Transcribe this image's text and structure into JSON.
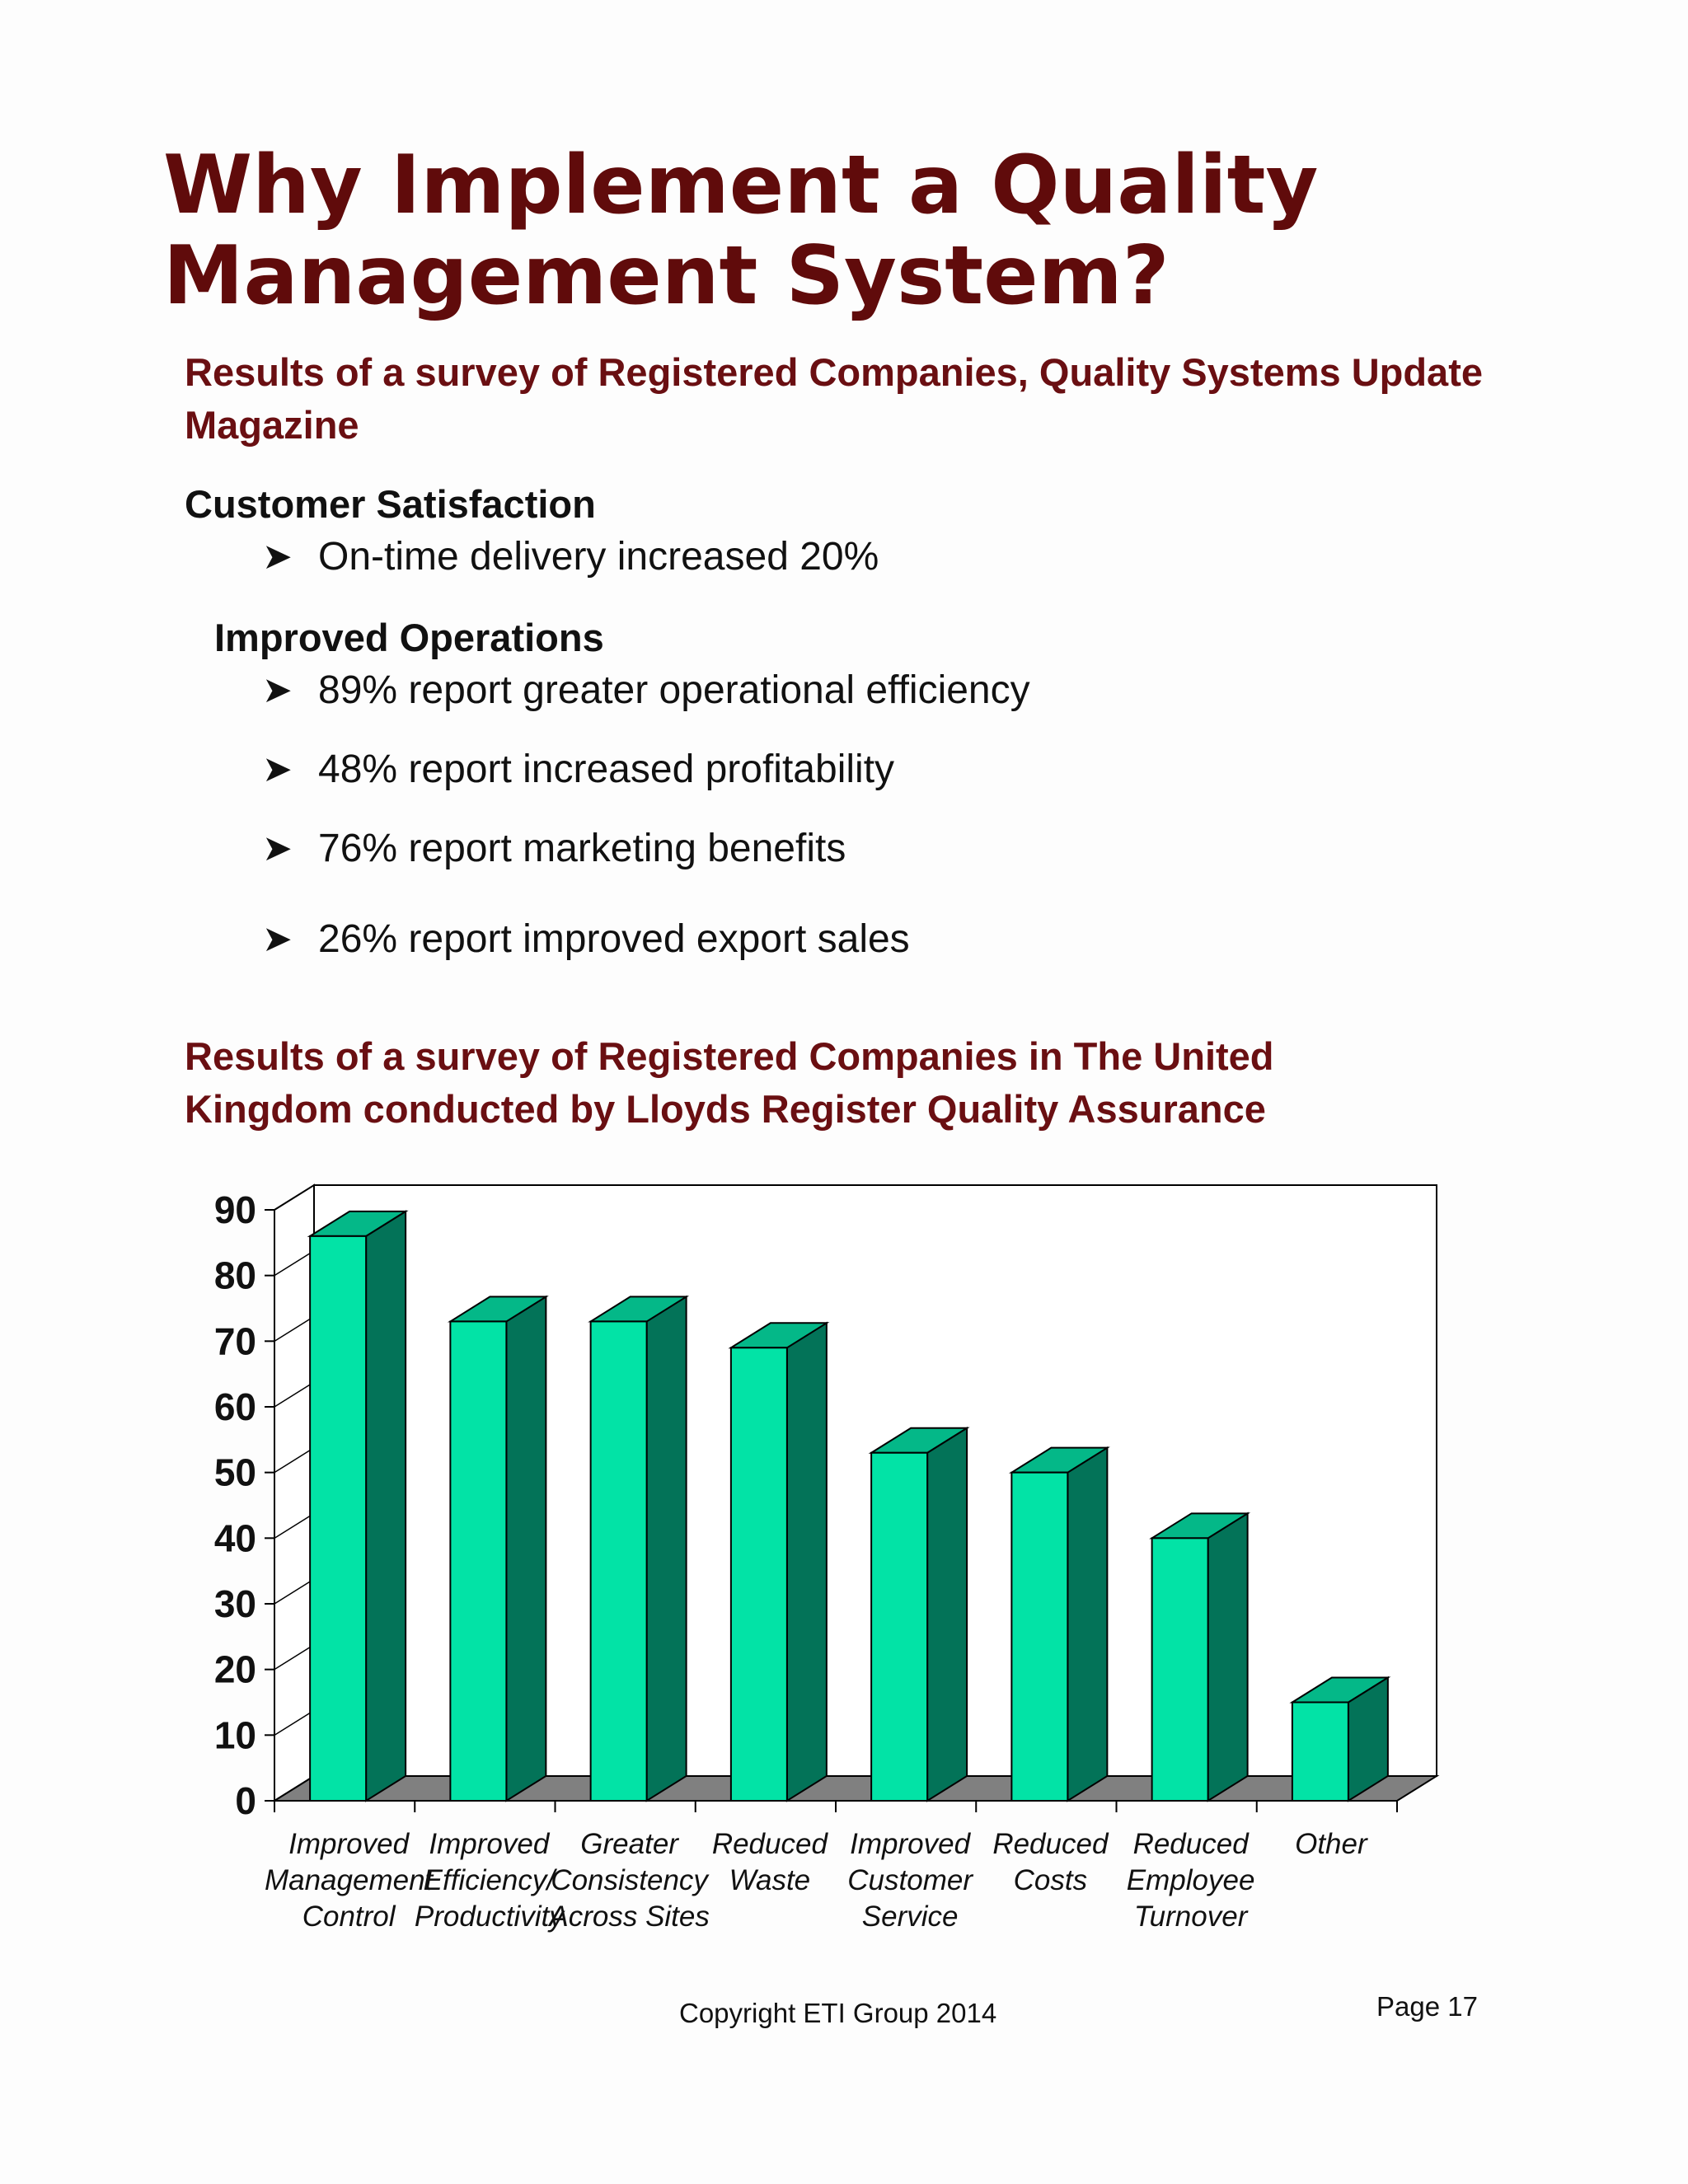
{
  "title": "Why Implement a Quality Management System?",
  "survey1_heading": "Results of a survey of Registered Companies, Quality Systems Update Magazine",
  "customer_section": {
    "heading": "Customer Satisfaction",
    "items": [
      "On-time delivery increased 20%"
    ]
  },
  "operations_section": {
    "heading": "Improved Operations",
    "items": [
      "89% report greater operational efficiency",
      "48% report increased profitability",
      "76% report marketing benefits",
      "26% report improved export sales"
    ]
  },
  "survey2_heading": "Results of a survey of Registered Companies in The United Kingdom conducted by Lloyds Register Quality Assurance",
  "chart_data": {
    "type": "bar",
    "style": "3d",
    "categories": [
      [
        "Improved",
        "Management",
        "Control"
      ],
      [
        "Improved",
        "Efficiency/",
        "Productivity"
      ],
      [
        "Greater",
        "Consistency",
        "Across Sites"
      ],
      [
        "Reduced",
        "Waste"
      ],
      [
        "Improved",
        "Customer",
        "Service"
      ],
      [
        "Reduced",
        "Costs"
      ],
      [
        "Reduced",
        "Employee",
        "Turnover"
      ],
      [
        "Other"
      ]
    ],
    "values": [
      86,
      73,
      73,
      69,
      53,
      50,
      40,
      15
    ],
    "ylim": [
      0,
      90
    ],
    "yticks": [
      0,
      10,
      20,
      30,
      40,
      50,
      60,
      70,
      80,
      90
    ],
    "grid": false,
    "colors": {
      "front": "#02e3a6",
      "side": "#037358",
      "top": "#04b888",
      "floor": "#808080"
    }
  },
  "footer": {
    "copyright": "Copyright ETI Group 2014",
    "page": "Page 17"
  }
}
